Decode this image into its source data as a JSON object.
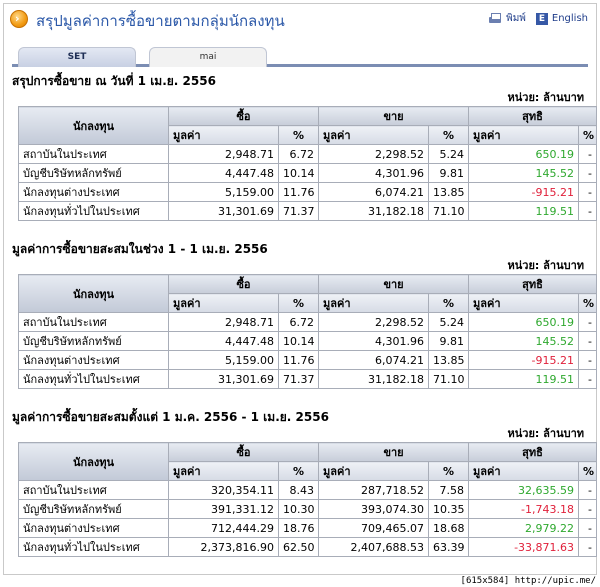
{
  "header": {
    "title": "สรุปมูลค่าการซื้อขายตามกลุ่มนักลงทุน",
    "print_label": "พิมพ์",
    "language_label": "English",
    "language_icon": "E"
  },
  "tabs": [
    {
      "label": "SET"
    },
    {
      "label": "mai"
    }
  ],
  "unit_label": "หน่วย: ล้านบาท",
  "columns": {
    "investor": "นักลงทุน",
    "buy": "ซื้อ",
    "sell": "ขาย",
    "net": "สุทธิ",
    "value": "มูลค่า",
    "percent": "%"
  },
  "sections": [
    {
      "title": "สรุปการซื้อขาย ณ วันที่ 1 เม.ย. 2556",
      "rows": [
        {
          "name": "สถาบันในประเทศ",
          "buy": "2,948.71",
          "buy_pct": "6.72",
          "sell": "2,298.52",
          "sell_pct": "5.24",
          "net": "650.19",
          "net_pct": "-"
        },
        {
          "name": "บัญชีบริษัทหลักทรัพย์",
          "buy": "4,447.48",
          "buy_pct": "10.14",
          "sell": "4,301.96",
          "sell_pct": "9.81",
          "net": "145.52",
          "net_pct": "-"
        },
        {
          "name": "นักลงทุนต่างประเทศ",
          "buy": "5,159.00",
          "buy_pct": "11.76",
          "sell": "6,074.21",
          "sell_pct": "13.85",
          "net": "-915.21",
          "net_pct": "-"
        },
        {
          "name": "นักลงทุนทั่วไปในประเทศ",
          "buy": "31,301.69",
          "buy_pct": "71.37",
          "sell": "31,182.18",
          "sell_pct": "71.10",
          "net": "119.51",
          "net_pct": "-"
        }
      ]
    },
    {
      "title": "มูลค่าการซื้อขายสะสมในช่วง 1 - 1 เม.ย. 2556",
      "rows": [
        {
          "name": "สถาบันในประเทศ",
          "buy": "2,948.71",
          "buy_pct": "6.72",
          "sell": "2,298.52",
          "sell_pct": "5.24",
          "net": "650.19",
          "net_pct": "-"
        },
        {
          "name": "บัญชีบริษัทหลักทรัพย์",
          "buy": "4,447.48",
          "buy_pct": "10.14",
          "sell": "4,301.96",
          "sell_pct": "9.81",
          "net": "145.52",
          "net_pct": "-"
        },
        {
          "name": "นักลงทุนต่างประเทศ",
          "buy": "5,159.00",
          "buy_pct": "11.76",
          "sell": "6,074.21",
          "sell_pct": "13.85",
          "net": "-915.21",
          "net_pct": "-"
        },
        {
          "name": "นักลงทุนทั่วไปในประเทศ",
          "buy": "31,301.69",
          "buy_pct": "71.37",
          "sell": "31,182.18",
          "sell_pct": "71.10",
          "net": "119.51",
          "net_pct": "-"
        }
      ]
    },
    {
      "title": "มูลค่าการซื้อขายสะสมตั้งแต่ 1 ม.ค. 2556 - 1 เม.ย. 2556",
      "rows": [
        {
          "name": "สถาบันในประเทศ",
          "buy": "320,354.11",
          "buy_pct": "8.43",
          "sell": "287,718.52",
          "sell_pct": "7.58",
          "net": "32,635.59",
          "net_pct": "-"
        },
        {
          "name": "บัญชีบริษัทหลักทรัพย์",
          "buy": "391,331.12",
          "buy_pct": "10.30",
          "sell": "393,074.30",
          "sell_pct": "10.35",
          "net": "-1,743.18",
          "net_pct": "-"
        },
        {
          "name": "นักลงทุนต่างประเทศ",
          "buy": "712,444.29",
          "buy_pct": "18.76",
          "sell": "709,465.07",
          "sell_pct": "18.68",
          "net": "2,979.22",
          "net_pct": "-"
        },
        {
          "name": "นักลงทุนทั่วไปในประเทศ",
          "buy": "2,373,816.90",
          "buy_pct": "62.50",
          "sell": "2,407,688.53",
          "sell_pct": "63.39",
          "net": "-33,871.63",
          "net_pct": "-"
        }
      ]
    }
  ],
  "caption": "[615x584] http://upic.me/",
  "colors": {
    "positive": "#2ea82e",
    "negative": "#e0203a",
    "title": "#2b58a8"
  }
}
